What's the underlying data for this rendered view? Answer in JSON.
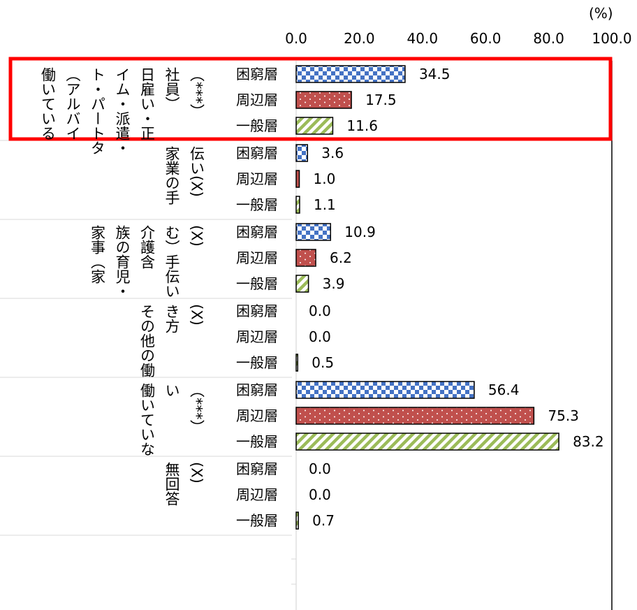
{
  "chart_data": {
    "type": "bar",
    "orientation": "horizontal",
    "unit_label": "(%)",
    "xlim": [
      0,
      100
    ],
    "x_ticks": [
      "0.0",
      "20.0",
      "40.0",
      "60.0",
      "80.0",
      "100.0"
    ],
    "legend": "none",
    "grid": false,
    "groups": [
      {
        "label_columns": [
          "働いている",
          "（アルバイ",
          "ト・パートタ",
          "イム・派遣・",
          "日雇い・正",
          "社員）",
          "（***）"
        ],
        "highlighted": true,
        "bars": [
          {
            "category": "困窮層",
            "value": 34.5,
            "label": "34.5"
          },
          {
            "category": "周辺層",
            "value": 17.5,
            "label": "17.5"
          },
          {
            "category": "一般層",
            "value": 11.6,
            "label": "11.6"
          }
        ]
      },
      {
        "label_columns": [
          "家業の手",
          "伝い(X)"
        ],
        "highlighted": false,
        "bars": [
          {
            "category": "困窮層",
            "value": 3.6,
            "label": "3.6"
          },
          {
            "category": "周辺層",
            "value": 1.0,
            "label": "1.0"
          },
          {
            "category": "一般層",
            "value": 1.1,
            "label": "1.1"
          }
        ]
      },
      {
        "label_columns": [
          "家事（家",
          "族の育児・",
          "介護含",
          "む）手伝い",
          "(X)"
        ],
        "highlighted": false,
        "bars": [
          {
            "category": "困窮層",
            "value": 10.9,
            "label": "10.9"
          },
          {
            "category": "周辺層",
            "value": 6.2,
            "label": "6.2"
          },
          {
            "category": "一般層",
            "value": 3.9,
            "label": "3.9"
          }
        ]
      },
      {
        "label_columns": [
          "その他の働",
          "き方",
          "(X)"
        ],
        "highlighted": false,
        "bars": [
          {
            "category": "困窮層",
            "value": 0.0,
            "label": "0.0"
          },
          {
            "category": "周辺層",
            "value": 0.0,
            "label": "0.0"
          },
          {
            "category": "一般層",
            "value": 0.5,
            "label": "0.5"
          }
        ]
      },
      {
        "label_columns": [
          "働いていな",
          "い",
          "（***）"
        ],
        "highlighted": false,
        "bars": [
          {
            "category": "困窮層",
            "value": 56.4,
            "label": "56.4"
          },
          {
            "category": "周辺層",
            "value": 75.3,
            "label": "75.3"
          },
          {
            "category": "一般層",
            "value": 83.2,
            "label": "83.2"
          }
        ]
      },
      {
        "label_columns": [
          "無回答",
          "(X)"
        ],
        "highlighted": false,
        "bars": [
          {
            "category": "困窮層",
            "value": 0.0,
            "label": "0.0"
          },
          {
            "category": "周辺層",
            "value": 0.0,
            "label": "0.0"
          },
          {
            "category": "一般層",
            "value": 0.7,
            "label": "0.7"
          }
        ]
      }
    ],
    "series_styles": {
      "困窮層": {
        "pattern": "checker",
        "color": "#4472c4"
      },
      "周辺層": {
        "pattern": "dots",
        "color": "#c0504d"
      },
      "一般層": {
        "pattern": "diagonal",
        "color": "#9bbb59"
      }
    },
    "highlight_color": "#ff0000"
  }
}
